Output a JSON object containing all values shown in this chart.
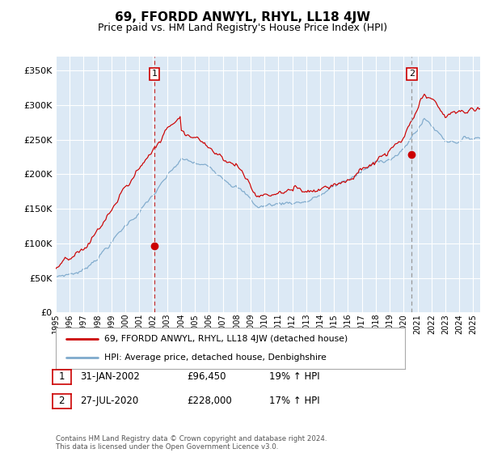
{
  "title": "69, FFORDD ANWYL, RHYL, LL18 4JW",
  "subtitle": "Price paid vs. HM Land Registry's House Price Index (HPI)",
  "ytick_values": [
    0,
    50000,
    100000,
    150000,
    200000,
    250000,
    300000,
    350000
  ],
  "ylim": [
    0,
    370000
  ],
  "xlim_start": 1995.0,
  "xlim_end": 2025.5,
  "bg_color": "#dce9f5",
  "grid_color": "#ffffff",
  "red_line_color": "#cc0000",
  "blue_line_color": "#7faacc",
  "sale1_date": 2002.08,
  "sale1_price": 96450,
  "sale2_date": 2020.58,
  "sale2_price": 228000,
  "legend_line1": "69, FFORDD ANWYL, RHYL, LL18 4JW (detached house)",
  "legend_line2": "HPI: Average price, detached house, Denbighshire",
  "table_row1": [
    "1",
    "31-JAN-2002",
    "£96,450",
    "19% ↑ HPI"
  ],
  "table_row2": [
    "2",
    "27-JUL-2020",
    "£228,000",
    "17% ↑ HPI"
  ],
  "footer": "Contains HM Land Registry data © Crown copyright and database right 2024.\nThis data is licensed under the Open Government Licence v3.0."
}
